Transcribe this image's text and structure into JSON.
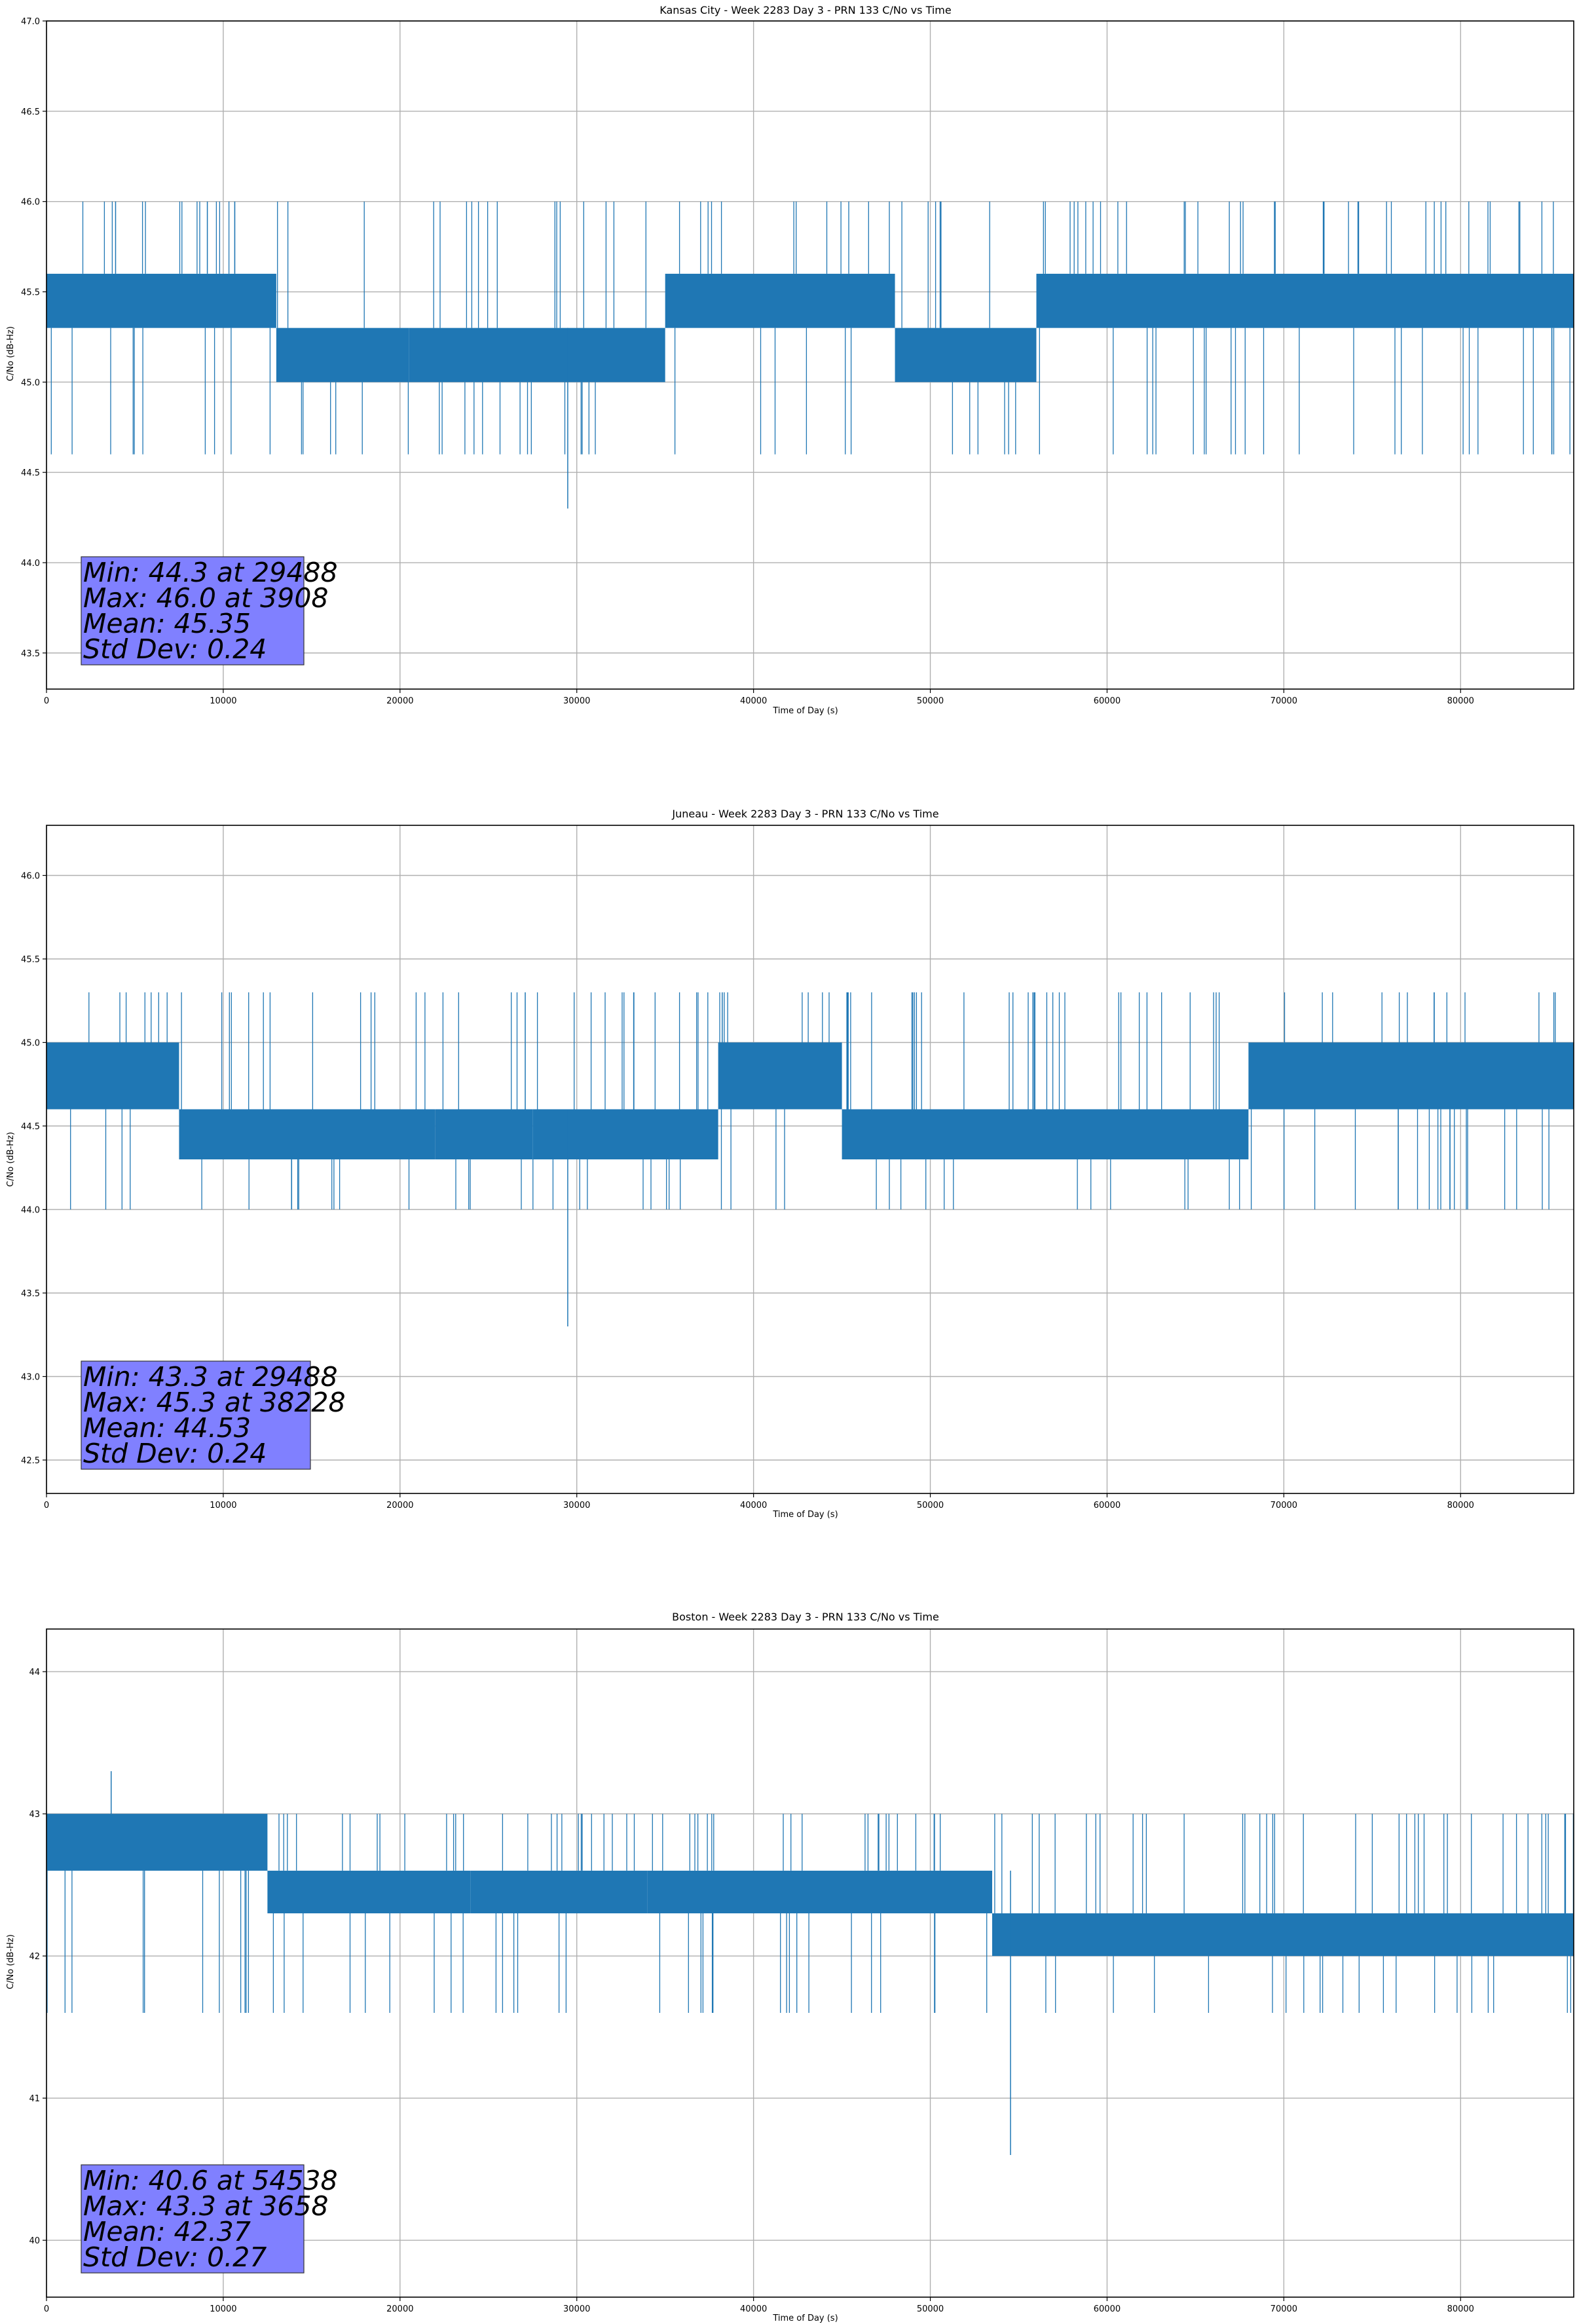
{
  "chart_data": [
    {
      "type": "line",
      "title": "Kansas City - Week 2283 Day 3 - PRN 133 C/No vs Time",
      "xlabel": "Time of Day (s)",
      "ylabel": "C/No (dB-Hz)",
      "xlim": [
        0,
        86400
      ],
      "ylim": [
        43.3,
        47.0
      ],
      "xticks": [
        "0",
        "10000",
        "20000",
        "30000",
        "40000",
        "50000",
        "60000",
        "70000",
        "80000"
      ],
      "yticks": [
        "43.5",
        "44.0",
        "44.5",
        "45.0",
        "45.5",
        "46.0",
        "46.5",
        "47.0"
      ],
      "grid": true,
      "series_color": "#1f77b4",
      "series": [
        {
          "segments": [
            {
              "x": [
                0,
                13000
              ],
              "range": [
                45.3,
                45.6
              ]
            },
            {
              "x": [
                13000,
                20500
              ],
              "range": [
                45.0,
                45.3
              ]
            },
            {
              "x": [
                20500,
                35000
              ],
              "range": [
                45.0,
                45.3
              ]
            },
            {
              "x": [
                35000,
                48000
              ],
              "range": [
                45.3,
                45.6
              ]
            },
            {
              "x": [
                48000,
                56000
              ],
              "range": [
                45.0,
                45.3
              ]
            },
            {
              "x": [
                56000,
                86400
              ],
              "range": [
                45.3,
                45.6
              ]
            }
          ],
          "spikes_to": [
            46.0,
            44.6
          ],
          "min": {
            "x": 29488,
            "y": 44.3
          },
          "max": {
            "x": 3908,
            "y": 46.0
          }
        }
      ],
      "stats": {
        "min": "Min: 44.3 at 29488",
        "max": "Max: 46.0 at 3908",
        "mean": "Mean: 45.35",
        "std": "Std Dev: 0.24"
      }
    },
    {
      "type": "line",
      "title": "Juneau - Week 2283 Day 3 - PRN 133 C/No vs Time",
      "xlabel": "Time of Day (s)",
      "ylabel": "C/No (dB-Hz)",
      "xlim": [
        0,
        86400
      ],
      "ylim": [
        42.3,
        46.3
      ],
      "xticks": [
        "0",
        "10000",
        "20000",
        "30000",
        "40000",
        "50000",
        "60000",
        "70000",
        "80000"
      ],
      "yticks": [
        "42.5",
        "43.0",
        "43.5",
        "44.0",
        "44.5",
        "45.0",
        "45.5",
        "46.0"
      ],
      "grid": true,
      "series_color": "#1f77b4",
      "series": [
        {
          "segments": [
            {
              "x": [
                0,
                7500
              ],
              "range": [
                44.6,
                45.0
              ]
            },
            {
              "x": [
                7500,
                22000
              ],
              "range": [
                44.3,
                44.6
              ]
            },
            {
              "x": [
                22000,
                27500
              ],
              "range": [
                44.3,
                44.6
              ]
            },
            {
              "x": [
                27500,
                38000
              ],
              "range": [
                44.3,
                44.6
              ]
            },
            {
              "x": [
                38000,
                45000
              ],
              "range": [
                44.6,
                45.0
              ]
            },
            {
              "x": [
                45000,
                68000
              ],
              "range": [
                44.3,
                44.6
              ]
            },
            {
              "x": [
                68000,
                86400
              ],
              "range": [
                44.6,
                45.0
              ]
            }
          ],
          "spikes_to": [
            45.3,
            44.0
          ],
          "min": {
            "x": 29488,
            "y": 43.3
          },
          "max": {
            "x": 38228,
            "y": 45.3
          }
        }
      ],
      "stats": {
        "min": "Min: 43.3 at 29488",
        "max": "Max: 45.3 at 38228",
        "mean": "Mean: 44.53",
        "std": "Std Dev: 0.24"
      }
    },
    {
      "type": "line",
      "title": "Boston - Week 2283 Day 3 - PRN 133 C/No vs Time",
      "xlabel": "Time of Day (s)",
      "ylabel": "C/No (dB-Hz)",
      "xlim": [
        0,
        86400
      ],
      "ylim": [
        39.6,
        44.3
      ],
      "xticks": [
        "0",
        "10000",
        "20000",
        "30000",
        "40000",
        "50000",
        "60000",
        "70000",
        "80000"
      ],
      "yticks": [
        "40",
        "41",
        "42",
        "43",
        "44"
      ],
      "grid": true,
      "series_color": "#1f77b4",
      "series": [
        {
          "segments": [
            {
              "x": [
                0,
                12500
              ],
              "range": [
                42.6,
                43.0
              ]
            },
            {
              "x": [
                12500,
                24000
              ],
              "range": [
                42.3,
                42.6
              ]
            },
            {
              "x": [
                24000,
                34000
              ],
              "range": [
                42.3,
                42.6
              ]
            },
            {
              "x": [
                34000,
                53500
              ],
              "range": [
                42.3,
                42.6
              ]
            },
            {
              "x": [
                53500,
                86400
              ],
              "range": [
                42.0,
                42.3
              ]
            }
          ],
          "spikes_to": [
            43.0,
            41.6
          ],
          "min": {
            "x": 54538,
            "y": 40.6
          },
          "max": {
            "x": 3658,
            "y": 43.3
          }
        }
      ],
      "stats": {
        "min": "Min: 40.6 at 54538",
        "max": "Max: 43.3 at 3658",
        "mean": "Mean: 42.37",
        "std": "Std Dev: 0.27"
      }
    }
  ]
}
